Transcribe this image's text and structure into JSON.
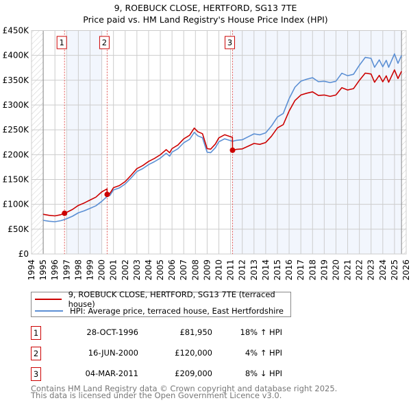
{
  "chart_data": {
    "type": "line",
    "title": "9, ROEBUCK CLOSE, HERTFORD, SG13 7TE",
    "subtitle": "Price paid vs. HM Land Registry's House Price Index (HPI)",
    "xlim": [
      1994,
      2026
    ],
    "ylim": [
      0,
      450000
    ],
    "x_ticks": [
      "1994",
      "1995",
      "1996",
      "1997",
      "1998",
      "1999",
      "2000",
      "2001",
      "2002",
      "2003",
      "2004",
      "2005",
      "2006",
      "2007",
      "2008",
      "2009",
      "2010",
      "2011",
      "2012",
      "2013",
      "2014",
      "2015",
      "2016",
      "2017",
      "2018",
      "2019",
      "2020",
      "2021",
      "2022",
      "2023",
      "2024",
      "2025",
      "2026"
    ],
    "y_ticks": [
      {
        "v": 0,
        "label": "£0"
      },
      {
        "v": 50000,
        "label": "£50K"
      },
      {
        "v": 100000,
        "label": "£100K"
      },
      {
        "v": 150000,
        "label": "£150K"
      },
      {
        "v": 200000,
        "label": "£200K"
      },
      {
        "v": 250000,
        "label": "£250K"
      },
      {
        "v": 300000,
        "label": "£300K"
      },
      {
        "v": 350000,
        "label": "£350K"
      },
      {
        "v": 400000,
        "label": "£400K"
      },
      {
        "v": 450000,
        "label": "£450K"
      }
    ],
    "grid": true,
    "series": [
      {
        "name": "9, ROEBUCK CLOSE, HERTFORD, SG13 7TE (terraced house)",
        "color": "#cc0000",
        "x": [
          1995.0,
          1995.5,
          1996.0,
          1996.5,
          1996.82,
          1997.0,
          1997.5,
          1998.0,
          1998.5,
          1999.0,
          1999.5,
          2000.0,
          2000.45,
          2000.46,
          2000.7,
          2001.0,
          2001.5,
          2002.0,
          2002.5,
          2003.0,
          2003.5,
          2004.0,
          2004.5,
          2005.0,
          2005.5,
          2005.8,
          2006.0,
          2006.5,
          2007.0,
          2007.5,
          2007.9,
          2008.2,
          2008.6,
          2009.0,
          2009.3,
          2009.7,
          2010.0,
          2010.5,
          2010.9,
          2011.16,
          2011.17,
          2011.5,
          2012.0,
          2012.5,
          2013.0,
          2013.5,
          2014.0,
          2014.5,
          2015.0,
          2015.5,
          2016.0,
          2016.5,
          2017.0,
          2017.5,
          2018.0,
          2018.5,
          2019.0,
          2019.5,
          2020.0,
          2020.5,
          2021.0,
          2021.5,
          2022.0,
          2022.5,
          2023.0,
          2023.3,
          2023.7,
          2024.0,
          2024.3,
          2024.5,
          2025.0,
          2025.3,
          2025.6
        ],
        "values": [
          79900,
          77900,
          76700,
          79100,
          81950,
          83800,
          89700,
          97900,
          102700,
          108600,
          114500,
          125100,
          131000,
          120000,
          122100,
          133500,
          137700,
          145900,
          158400,
          171800,
          178000,
          186300,
          192500,
          199800,
          210100,
          203900,
          212200,
          219400,
          231800,
          239100,
          253600,
          246300,
          242200,
          212200,
          211100,
          221500,
          233900,
          240100,
          237000,
          235000,
          209000,
          210700,
          211600,
          217100,
          222600,
          220800,
          224500,
          237400,
          253900,
          260400,
          288000,
          309100,
          320200,
          323800,
          326600,
          319200,
          320200,
          317400,
          320200,
          334900,
          330300,
          333000,
          349600,
          364300,
          362500,
          345900,
          359700,
          346800,
          358800,
          345900,
          370800,
          353300,
          368000
        ]
      },
      {
        "name": "HPI: Average price, terraced house, East Hertfordshire",
        "color": "#5b8fd4",
        "x": [
          1995.0,
          1995.5,
          1996.0,
          1996.5,
          1996.82,
          1997.0,
          1997.5,
          1998.0,
          1998.5,
          1999.0,
          1999.5,
          2000.0,
          2000.46,
          2000.7,
          2001.0,
          2001.5,
          2002.0,
          2002.5,
          2003.0,
          2003.5,
          2004.0,
          2004.5,
          2005.0,
          2005.5,
          2005.8,
          2006.0,
          2006.5,
          2007.0,
          2007.5,
          2007.9,
          2008.2,
          2008.6,
          2009.0,
          2009.3,
          2009.7,
          2010.0,
          2010.5,
          2010.9,
          2011.17,
          2011.5,
          2012.0,
          2012.5,
          2013.0,
          2013.5,
          2014.0,
          2014.5,
          2015.0,
          2015.5,
          2016.0,
          2016.5,
          2017.0,
          2017.5,
          2018.0,
          2018.5,
          2019.0,
          2019.5,
          2020.0,
          2020.5,
          2021.0,
          2021.5,
          2022.0,
          2022.5,
          2023.0,
          2023.3,
          2023.7,
          2024.0,
          2024.3,
          2024.5,
          2025.0,
          2025.3,
          2025.6
        ],
        "values": [
          67700,
          66000,
          65000,
          67000,
          69400,
          71000,
          76000,
          83000,
          87000,
          92000,
          97000,
          106000,
          116000,
          118000,
          129000,
          133000,
          141000,
          153000,
          166000,
          172000,
          180000,
          186000,
          193000,
          203000,
          197000,
          205000,
          212000,
          224000,
          231000,
          245000,
          238000,
          234000,
          205000,
          204000,
          214000,
          226000,
          232000,
          229000,
          227000,
          229000,
          230000,
          236000,
          242000,
          240000,
          244000,
          258000,
          276000,
          283000,
          313000,
          336000,
          348000,
          352000,
          355000,
          347000,
          348000,
          345000,
          348000,
          364000,
          359000,
          362000,
          380000,
          396000,
          394000,
          376000,
          391000,
          377000,
          390000,
          376000,
          403000,
          384000,
          400000
        ]
      }
    ],
    "sales": [
      {
        "label": "1",
        "x": 1996.82,
        "price": 81950
      },
      {
        "label": "2",
        "x": 2000.46,
        "price": 120000
      },
      {
        "label": "3",
        "x": 2011.17,
        "price": 209000
      }
    ],
    "shaded_ranges": [
      [
        1997.0,
        2000.0
      ],
      [
        2011.17,
        2025.6
      ]
    ],
    "data_end": 2025.6,
    "legend_position": "below"
  },
  "legend": {
    "red": "9, ROEBUCK CLOSE, HERTFORD, SG13 7TE (terraced house)",
    "blue": "HPI: Average price, terraced house, East Hertfordshire"
  },
  "transactions": [
    {
      "num": "1",
      "date": "28-OCT-1996",
      "price": "£81,950",
      "hpi": "18% ↑ HPI"
    },
    {
      "num": "2",
      "date": "16-JUN-2000",
      "price": "£120,000",
      "hpi": "4% ↑ HPI"
    },
    {
      "num": "3",
      "date": "04-MAR-2011",
      "price": "£209,000",
      "hpi": "8% ↓ HPI"
    }
  ],
  "footer": {
    "line1": "Contains HM Land Registry data © Crown copyright and database right 2025.",
    "line2": "This data is licensed under the Open Government Licence v3.0."
  }
}
